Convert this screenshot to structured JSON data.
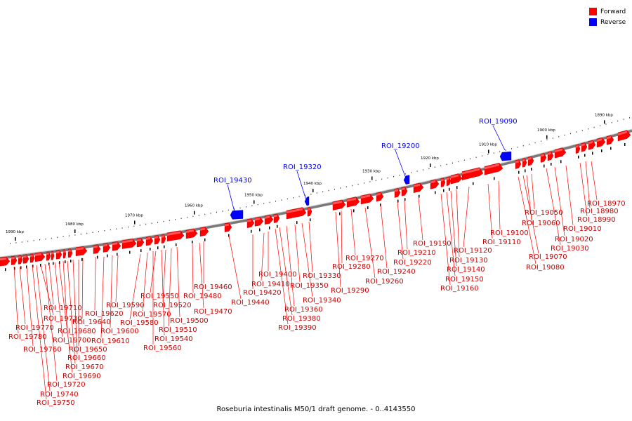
{
  "caption": "Roseburia intestinalis M50/1 draft genome. - 0..4143550",
  "legend": [
    {
      "label": "Forward",
      "color": "#ff0000"
    },
    {
      "label": "Reverse",
      "color": "#0000ff"
    }
  ],
  "scale_ticks": [
    "1990 kbp",
    "1980 kbp",
    "1970 kbp",
    "1960 kbp",
    "1950 kbp",
    "1940 kbp",
    "1930 kbp",
    "1920 kbp",
    "1910 kbp",
    "1900 kbp",
    "1890 kbp"
  ],
  "forward_labels": [
    "ROI_18970",
    "ROI_18980",
    "ROI_18990",
    "ROI_19010",
    "ROI_19020",
    "ROI_19030",
    "ROI_19050",
    "ROI_19060",
    "ROI_19070",
    "ROI_19080",
    "ROI_19100",
    "ROI_19110",
    "ROI_19120",
    "ROI_19130",
    "ROI_19140",
    "ROI_19150",
    "ROI_19160",
    "ROI_19190",
    "ROI_19210",
    "ROI_19220",
    "ROI_19240",
    "ROI_19260",
    "ROI_19270",
    "ROI_19280",
    "ROI_19290",
    "ROI_19330",
    "ROI_19340",
    "ROI_19350",
    "ROI_19360",
    "ROI_19380",
    "ROI_19390",
    "ROI_19400",
    "ROI_19410",
    "ROI_19420",
    "ROI_19440",
    "ROI_19460",
    "ROI_19470",
    "ROI_19480",
    "ROI_19500",
    "ROI_19510",
    "ROI_19520",
    "ROI_19540",
    "ROI_19550",
    "ROI_19560",
    "ROI_19570",
    "ROI_19580",
    "ROI_19590",
    "ROI_19600",
    "ROI_19610",
    "ROI_19620",
    "ROI_19640",
    "ROI_19650",
    "ROI_19660",
    "ROI_19670",
    "ROI_19680",
    "ROI_19690",
    "ROI_19700",
    "ROI_19710",
    "ROI_19720",
    "ROI_19730",
    "ROI_19740",
    "ROI_19750",
    "ROI_19760",
    "ROI_19770",
    "ROI_19780"
  ],
  "reverse_labels": [
    "ROI_19090",
    "ROI_19200",
    "ROI_19320",
    "ROI_19430"
  ]
}
